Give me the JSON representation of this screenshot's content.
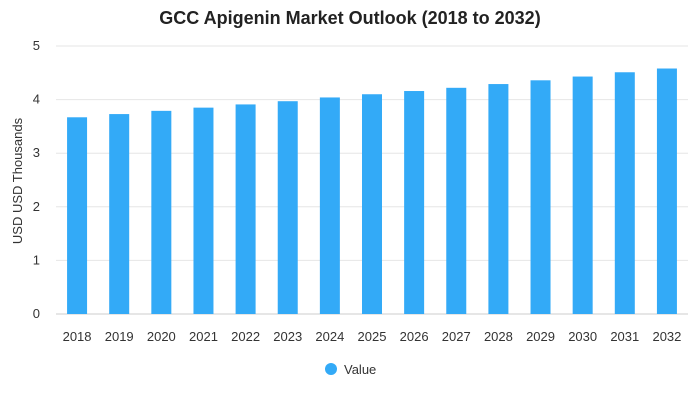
{
  "chart_data": {
    "type": "bar",
    "title": "GCC Apigenin Market Outlook (2018 to 2032)",
    "xlabel": "",
    "ylabel": "USD USD Thousands",
    "categories": [
      "2018",
      "2019",
      "2020",
      "2021",
      "2022",
      "2023",
      "2024",
      "2025",
      "2026",
      "2027",
      "2028",
      "2029",
      "2030",
      "2031",
      "2032"
    ],
    "series": [
      {
        "name": "Value",
        "color": "#33aaf7",
        "values": [
          3.67,
          3.73,
          3.79,
          3.85,
          3.91,
          3.97,
          4.04,
          4.1,
          4.16,
          4.22,
          4.29,
          4.36,
          4.43,
          4.51,
          4.58
        ]
      }
    ],
    "ylim": [
      0,
      5
    ],
    "yticks": [
      0,
      1,
      2,
      3,
      4,
      5
    ],
    "grid": true,
    "legend": "bottom-center"
  }
}
